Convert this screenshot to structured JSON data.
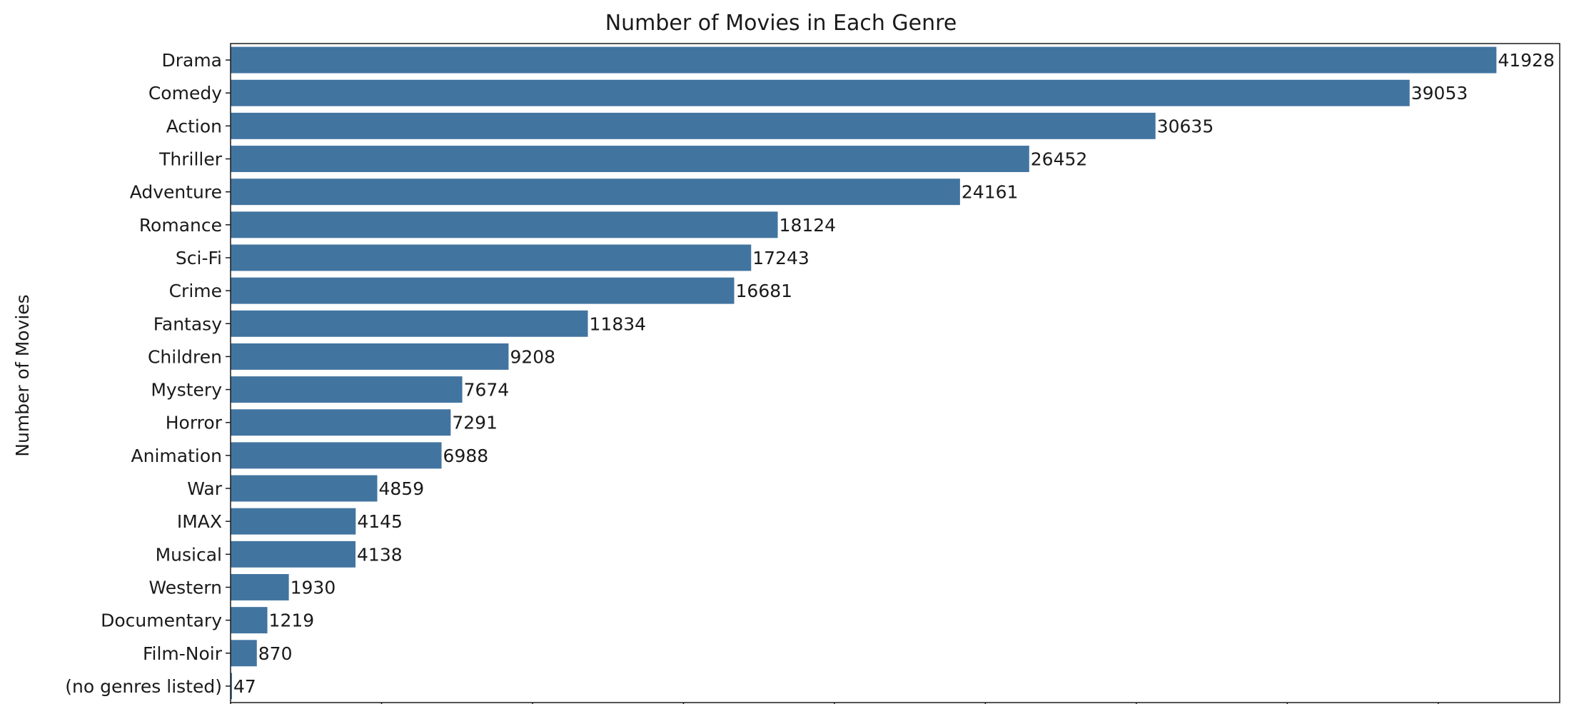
{
  "chart_data": {
    "type": "bar",
    "orientation": "horizontal",
    "title": "Number of Movies in Each Genre",
    "xlabel": "",
    "ylabel": "Number of Movies",
    "categories": [
      "Drama",
      "Comedy",
      "Action",
      "Thriller",
      "Adventure",
      "Romance",
      "Sci-Fi",
      "Crime",
      "Fantasy",
      "Children",
      "Mystery",
      "Horror",
      "Animation",
      "War",
      "IMAX",
      "Musical",
      "Western",
      "Documentary",
      "Film-Noir",
      "(no genres listed)"
    ],
    "values": [
      41928,
      39053,
      30635,
      26452,
      24161,
      18124,
      17243,
      16681,
      11834,
      9208,
      7674,
      7291,
      6988,
      4859,
      4145,
      4138,
      1930,
      1219,
      870,
      47
    ],
    "value_labels": [
      "41928",
      "39053",
      "30635",
      "26452",
      "24161",
      "18124",
      "17243",
      "16681",
      "11834",
      "9208",
      "7674",
      "7291",
      "6988",
      "4859",
      "4145",
      "4138",
      "1930",
      "1219",
      "870",
      "47"
    ],
    "xlim": [
      0,
      44024
    ],
    "grid": false,
    "legend": "none",
    "bar_color": "#4274a0"
  }
}
